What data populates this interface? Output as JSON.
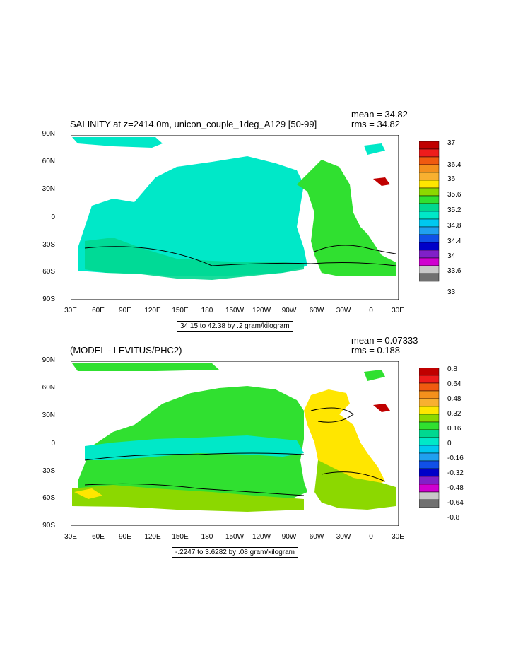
{
  "panels": [
    {
      "title": "SALINITY at z=2414.0m, unicon_couple_1deg_A129 [50-99]",
      "mean": "mean = 34.82",
      "rms": "rms = 34.82",
      "contour_info": "34.15 to 42.38 by .2 gram/kilogram",
      "lat_labels": [
        "90N",
        "60N",
        "30N",
        "0",
        "30S",
        "60S",
        "90S"
      ],
      "lon_labels": [
        "30E",
        "60E",
        "90E",
        "120E",
        "150E",
        "180",
        "150W",
        "120W",
        "90W",
        "60W",
        "30W",
        "0",
        "30E"
      ],
      "legend_labels": [
        "37",
        "36.4",
        "36",
        "35.6",
        "35.2",
        "34.8",
        "34.4",
        "34",
        "33.6",
        "33"
      ],
      "legend_colors": [
        "#c00000",
        "#ee1c1c",
        "#f05a10",
        "#f4901c",
        "#f8b030",
        "#ffe600",
        "#8cd800",
        "#30e030",
        "#00d890",
        "#00e8c8",
        "#00c8f0",
        "#20a0f0",
        "#1050e8",
        "#0000c8",
        "#8020c8",
        "#d000d0",
        "#c8c8c8",
        "#707070"
      ]
    },
    {
      "title": "(MODEL - LEVITUS/PHC2)",
      "mean": "mean = 0.07333",
      "rms": "rms = 0.188",
      "contour_info": "-.2247 to 3.6282 by .08 gram/kilogram",
      "lat_labels": [
        "90N",
        "60N",
        "30N",
        "0",
        "30S",
        "60S",
        "90S"
      ],
      "lon_labels": [
        "30E",
        "60E",
        "90E",
        "120E",
        "150E",
        "180",
        "150W",
        "120W",
        "90W",
        "60W",
        "30W",
        "0",
        "30E"
      ],
      "legend_labels": [
        "0.8",
        "0.64",
        "0.48",
        "0.32",
        "0.16",
        "0",
        "-0.16",
        "-0.32",
        "-0.48",
        "-0.64",
        "-0.8"
      ],
      "legend_colors": [
        "#c00000",
        "#ee1c1c",
        "#f05a10",
        "#f4901c",
        "#f8b030",
        "#ffe600",
        "#8cd800",
        "#30e030",
        "#00d890",
        "#00e8c8",
        "#00c8f0",
        "#20a0f0",
        "#1050e8",
        "#0000c8",
        "#8020c8",
        "#d000d0",
        "#c8c8c8",
        "#707070"
      ]
    }
  ]
}
